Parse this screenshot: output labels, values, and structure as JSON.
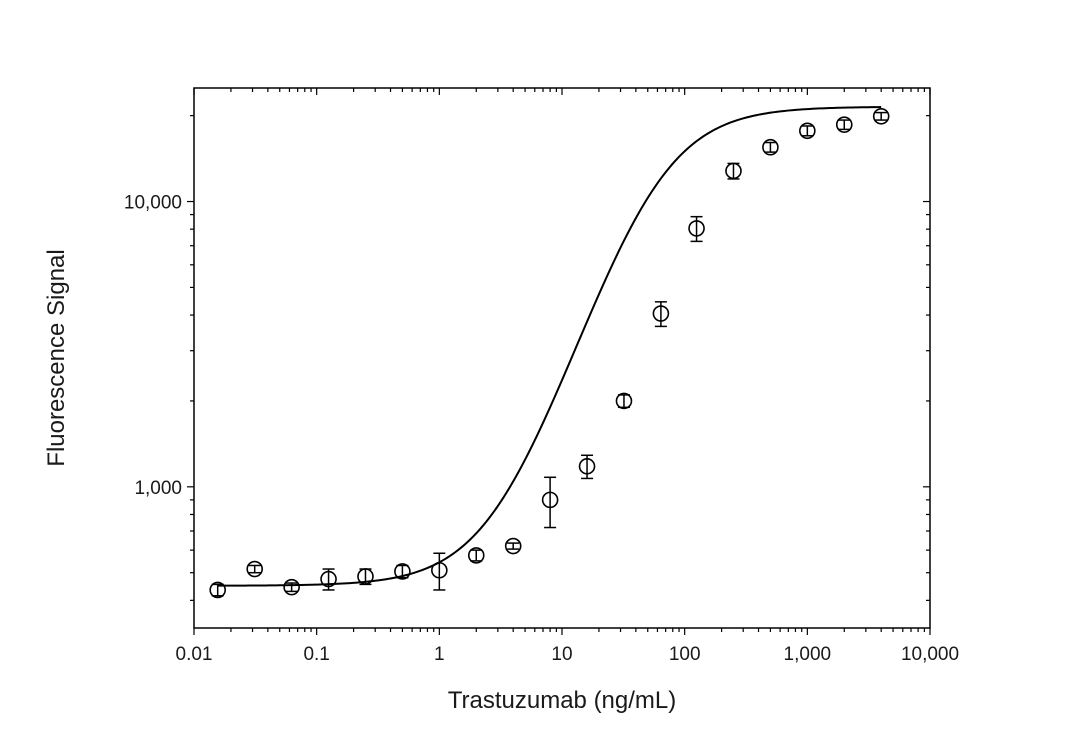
{
  "chart_data": {
    "type": "scatter",
    "title": "",
    "xlabel": "Trastuzumab (ng/mL)",
    "ylabel": "Fluorescence Signal",
    "xscale": "log",
    "yscale": "log",
    "xlim": [
      0.01,
      10000
    ],
    "ylim": [
      320,
      25000
    ],
    "grid": false,
    "legend": "none",
    "x_ticks": [
      {
        "value": 0.01,
        "label": "0.01"
      },
      {
        "value": 0.1,
        "label": "0.1"
      },
      {
        "value": 1,
        "label": "1"
      },
      {
        "value": 10,
        "label": "10"
      },
      {
        "value": 100,
        "label": "100"
      },
      {
        "value": 1000,
        "label": "1,000"
      },
      {
        "value": 10000,
        "label": "10,000"
      }
    ],
    "y_ticks": [
      {
        "value": 1000,
        "label": "1,000"
      },
      {
        "value": 10000,
        "label": "10,000"
      }
    ],
    "series": [
      {
        "marker": "open-circle",
        "color": "#000000",
        "points": [
          {
            "x": 0.0156,
            "y": 435,
            "err": 20
          },
          {
            "x": 0.03125,
            "y": 515,
            "err": 15
          },
          {
            "x": 0.0625,
            "y": 445,
            "err": 15
          },
          {
            "x": 0.125,
            "y": 475,
            "err": 40
          },
          {
            "x": 0.25,
            "y": 485,
            "err": 30
          },
          {
            "x": 0.5,
            "y": 505,
            "err": 25
          },
          {
            "x": 1,
            "y": 510,
            "err": 75
          },
          {
            "x": 2,
            "y": 575,
            "err": 25
          },
          {
            "x": 4,
            "y": 620,
            "err": 15
          },
          {
            "x": 8,
            "y": 900,
            "err": 180
          },
          {
            "x": 16,
            "y": 1180,
            "err": 110
          },
          {
            "x": 32,
            "y": 2000,
            "err": 100
          },
          {
            "x": 64,
            "y": 4050,
            "err": 400
          },
          {
            "x": 125,
            "y": 8050,
            "err": 800
          },
          {
            "x": 250,
            "y": 12800,
            "err": 800
          },
          {
            "x": 500,
            "y": 15500,
            "err": 600
          },
          {
            "x": 1000,
            "y": 17700,
            "err": 700
          },
          {
            "x": 2000,
            "y": 18600,
            "err": 700
          },
          {
            "x": 4000,
            "y": 19900,
            "err": 600
          }
        ]
      }
    ],
    "fit": {
      "model": "4PL",
      "bottom": 450,
      "top": 21500,
      "ec50": 55,
      "hill": 1.35
    }
  }
}
